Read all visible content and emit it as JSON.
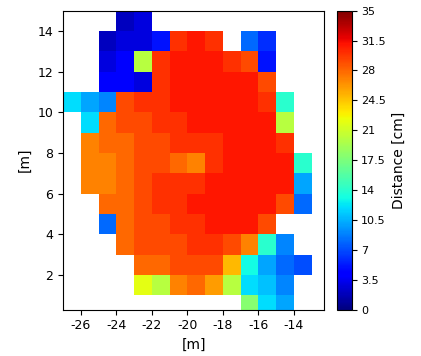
{
  "chart_data": {
    "type": "heatmap",
    "x_label": "[m]",
    "y_label": "[m]",
    "x": [
      -26.5,
      -25.5,
      -24.5,
      -23.5,
      -22.5,
      -21.5,
      -20.5,
      -19.5,
      -18.5,
      -17.5,
      -16.5,
      -15.5,
      -14.5,
      -13.5,
      -12.5
    ],
    "y": [
      0.5,
      1.5,
      2.5,
      3.5,
      4.5,
      5.5,
      6.5,
      7.5,
      8.5,
      9.5,
      10.5,
      11.5,
      12.5,
      13.5,
      14.5
    ],
    "cells": [
      [
        null,
        null,
        null,
        null,
        null,
        null,
        null,
        null,
        null,
        null,
        18,
        12,
        10,
        null,
        null
      ],
      [
        null,
        null,
        null,
        null,
        22,
        20,
        27,
        28,
        26,
        20,
        12,
        11,
        9,
        null,
        null
      ],
      [
        null,
        null,
        null,
        null,
        28,
        28,
        29,
        29,
        29,
        25,
        13,
        10,
        8,
        7,
        null
      ],
      [
        null,
        null,
        null,
        28,
        29,
        29,
        29,
        30,
        30,
        29,
        27,
        14,
        9,
        null,
        null
      ],
      [
        null,
        null,
        8,
        28,
        29,
        29,
        30,
        30,
        31,
        31,
        31,
        29,
        null,
        null,
        null
      ],
      [
        null,
        null,
        28,
        28,
        29,
        30,
        30,
        31,
        31,
        31,
        31,
        31,
        29,
        8,
        null
      ],
      [
        null,
        27,
        27,
        28,
        29,
        30,
        30,
        30,
        31,
        31,
        31,
        31,
        31,
        10,
        null
      ],
      [
        null,
        27,
        27,
        28,
        29,
        29,
        28,
        27,
        30,
        31,
        31,
        31,
        31,
        14,
        null
      ],
      [
        null,
        27,
        28,
        28,
        29,
        29,
        30,
        30,
        30,
        31,
        31,
        31,
        30,
        null,
        null
      ],
      [
        null,
        12,
        28,
        29,
        29,
        30,
        30,
        31,
        31,
        31,
        31,
        31,
        20,
        null,
        null
      ],
      [
        12,
        10,
        9,
        29,
        30,
        30,
        31,
        31,
        31,
        31,
        31,
        30,
        14,
        null,
        null
      ],
      [
        null,
        null,
        4,
        4,
        3,
        30,
        31,
        31,
        31,
        31,
        31,
        29,
        null,
        null,
        null
      ],
      [
        null,
        null,
        3,
        4,
        20,
        30,
        31,
        31,
        31,
        30,
        29,
        5,
        null,
        null,
        null
      ],
      [
        null,
        null,
        2,
        3,
        3,
        5,
        30,
        31,
        30,
        null,
        8,
        6,
        null,
        null,
        null
      ],
      [
        null,
        null,
        null,
        2,
        3,
        null,
        null,
        null,
        null,
        null,
        null,
        null,
        null,
        null,
        null
      ]
    ],
    "color": "jet",
    "xlim": [
      -27,
      -12.3
    ],
    "ylim": [
      0.3,
      15
    ],
    "xticks": [
      -26,
      -24,
      -22,
      -20,
      -18,
      -16,
      -14
    ],
    "yticks": [
      2,
      4,
      6,
      8,
      10,
      12,
      14
    ],
    "grid": false,
    "colorbar_label": "Distance [cm]",
    "colorbar_range": [
      0,
      35
    ],
    "colorbar_ticks": [
      0,
      3.5,
      7,
      10.5,
      14,
      17.5,
      21,
      24.5,
      28,
      31.5,
      35
    ]
  }
}
